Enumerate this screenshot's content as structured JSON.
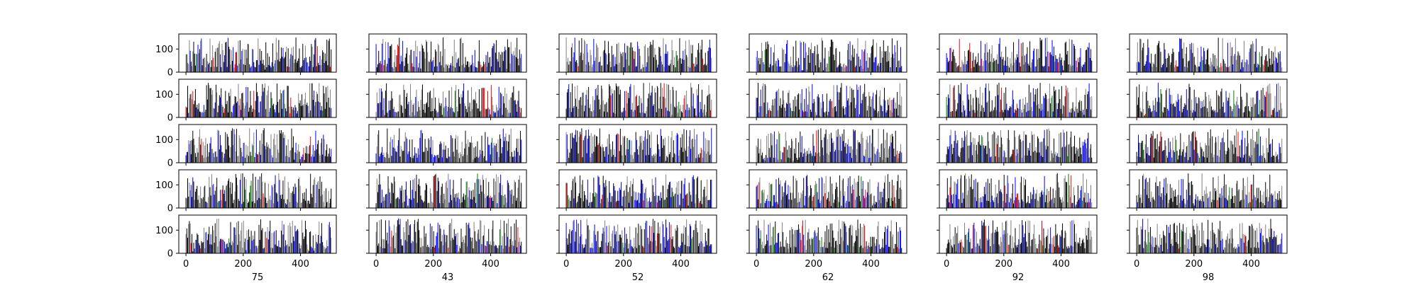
{
  "chart_data": {
    "type": "bar",
    "layout": {
      "rows": 5,
      "columns": 6
    },
    "column_labels": [
      "75",
      "43",
      "52",
      "62",
      "92",
      "98"
    ],
    "x_ticks": [
      0,
      200,
      400
    ],
    "x_tick_labels": [
      "0",
      "200",
      "400"
    ],
    "y_ticks": [
      0,
      100
    ],
    "y_tick_labels": [
      "0",
      "100"
    ],
    "xlim": [
      -25,
      525
    ],
    "ylim": [
      0,
      165
    ],
    "bars_per_panel": 170,
    "bar_spacing": 3,
    "value_range": [
      20,
      150
    ],
    "bar_colors": [
      "#000000",
      "#808080",
      "#0000ff",
      "#ff0000",
      "#008000"
    ],
    "color_weights": [
      0.46,
      0.33,
      0.17,
      0.025,
      0.015
    ],
    "sharey": true,
    "grid": false,
    "legend": "none"
  }
}
